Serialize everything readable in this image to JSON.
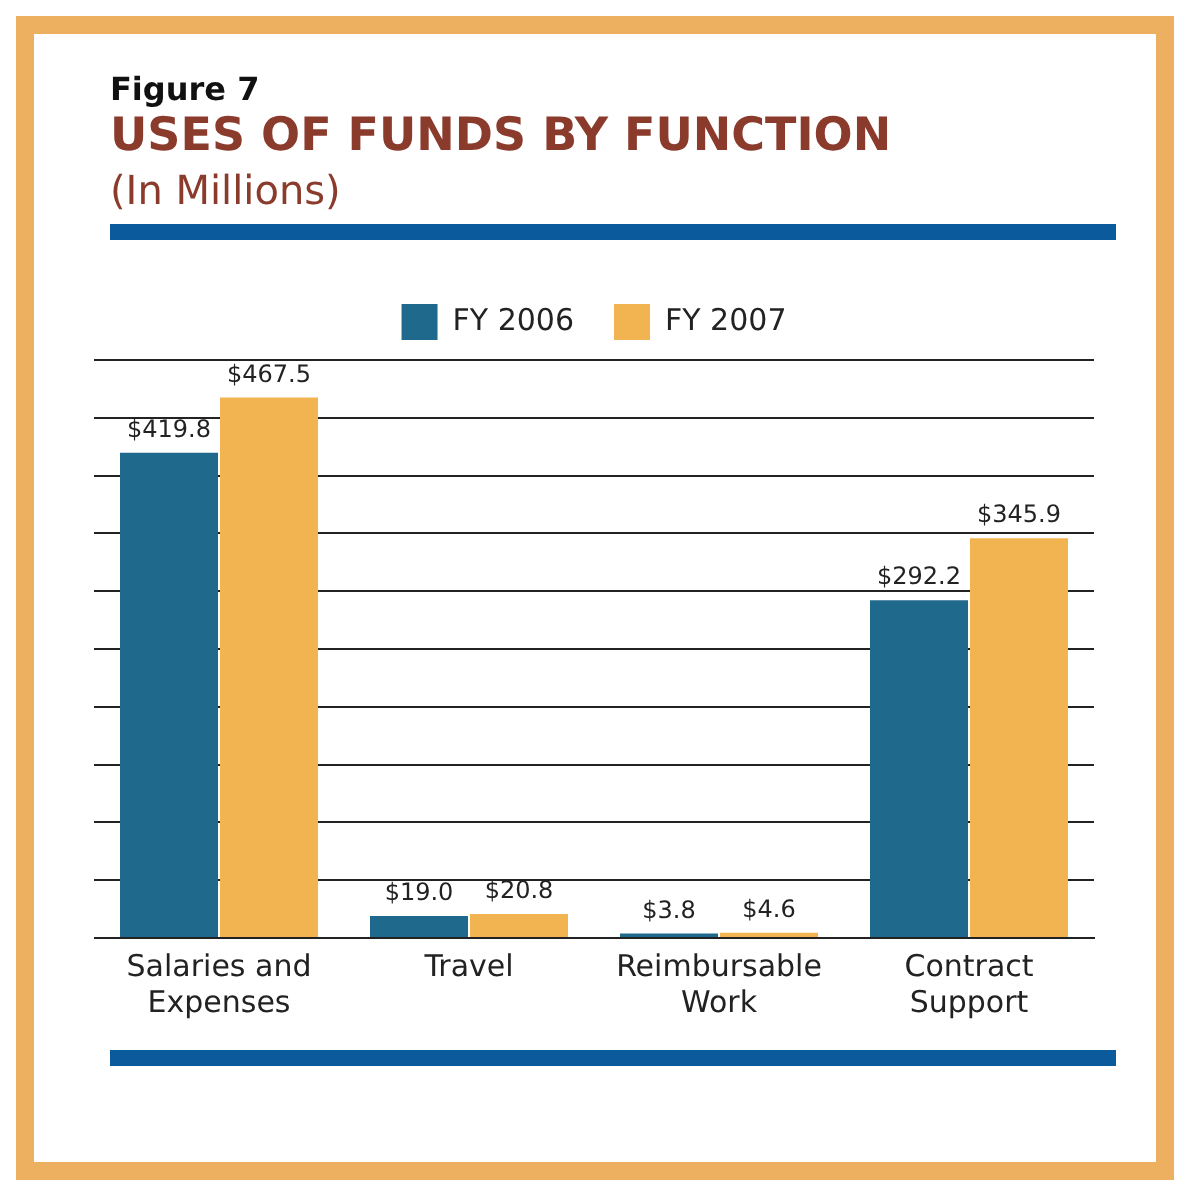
{
  "chart_data": {
    "type": "bar",
    "title": "USES OF FUNDS BY FUNCTION",
    "subtitle": "(In Millions)",
    "annotations": [
      "Figure 7"
    ],
    "categories": [
      "Salaries and Expenses",
      "Travel",
      "Reimbursable Work",
      "Contract Support"
    ],
    "series": [
      {
        "name": "FY 2006",
        "color": "#1f6a8c",
        "values": [
          419.8,
          19.0,
          3.8,
          292.2
        ],
        "value_labels": [
          "$419.8",
          "$19.0",
          "$3.8",
          "$292.2"
        ]
      },
      {
        "name": "FY 2007",
        "color": "#f2b450",
        "values": [
          467.5,
          20.8,
          4.6,
          345.9
        ],
        "value_labels": [
          "$467.5",
          "$20.8",
          "$4.6",
          "$345.9"
        ]
      }
    ],
    "ylim": [
      0,
      500
    ],
    "grid": "y",
    "tick_labels": "x",
    "legend": "top"
  }
}
